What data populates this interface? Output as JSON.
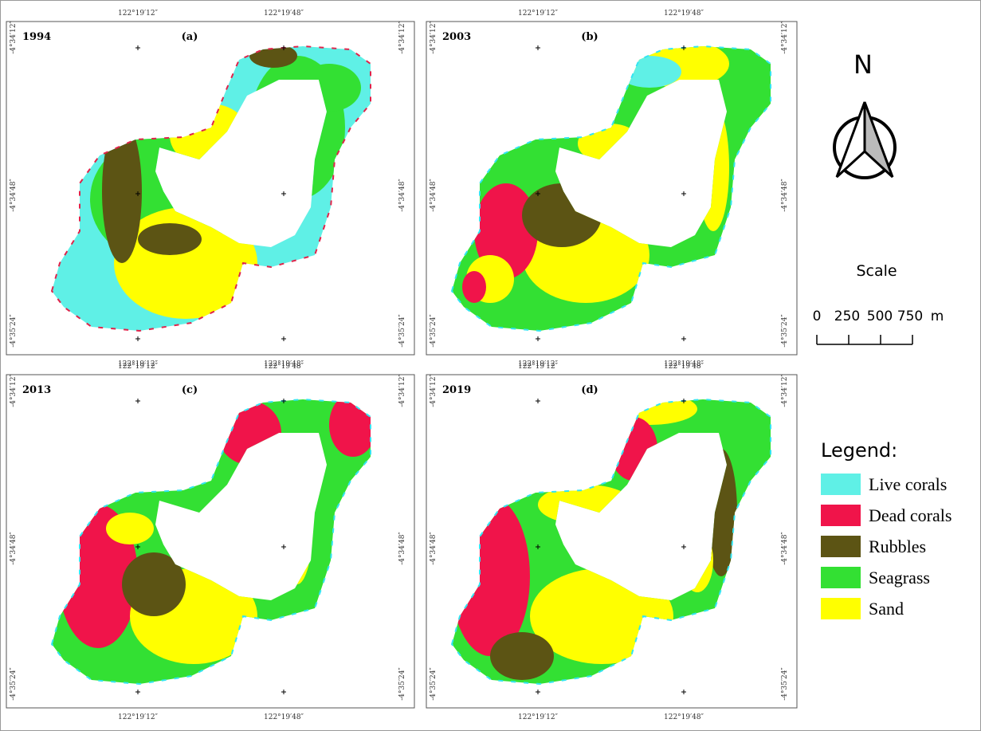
{
  "panels": [
    {
      "year": "1994",
      "label": "(a)",
      "lon_labels": [
        "122°19′12″",
        "122°19′48″"
      ],
      "lat_labels": [
        "-4°34′12″",
        "-4°34′48″",
        "-4°35′24″"
      ]
    },
    {
      "year": "2003",
      "label": "(b)",
      "lon_labels": [
        "122°19′12″",
        "122°19′48″"
      ],
      "lat_labels": [
        "-4°34′12″",
        "-4°34′48″",
        "-4°35′24″"
      ]
    },
    {
      "year": "2013",
      "label": "(c)",
      "lon_labels": [
        "122°19′12″",
        "122°19′48″"
      ],
      "lat_labels": [
        "-4°34′12″",
        "-4°34′48″",
        "-4°35′24″"
      ]
    },
    {
      "year": "2019",
      "label": "(d)",
      "lon_labels": [
        "122°19′12″",
        "122°19′48″"
      ],
      "lat_labels": [
        "-4°34′12″",
        "-4°34′48″",
        "-4°35′24″"
      ]
    }
  ],
  "north": "N",
  "scale": {
    "title": "Scale",
    "labels": [
      "0",
      "250",
      "500",
      "750",
      "m"
    ]
  },
  "legend": {
    "title": "Legend:",
    "items": [
      {
        "label": "Live corals",
        "color": "#5ff0e6"
      },
      {
        "label": "Dead corals",
        "color": "#f0144a"
      },
      {
        "label": "Rubbles",
        "color": "#5c5414"
      },
      {
        "label": "Seagrass",
        "color": "#33e033"
      },
      {
        "label": "Sand",
        "color": "#ffff00"
      }
    ]
  }
}
